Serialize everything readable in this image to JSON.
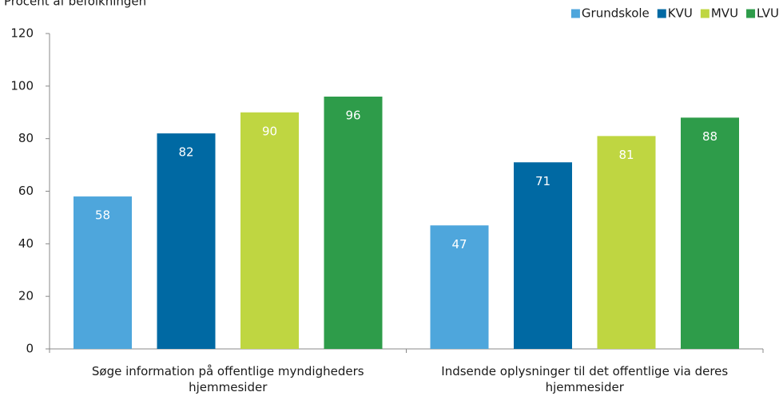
{
  "chart_data": {
    "type": "bar",
    "y_axis_label": "Procent af befolkningen",
    "categories": [
      "Søge information på offentlige myndigheders hjemmesider",
      "Indsende oplysninger til det offentlige via deres hjemmesider"
    ],
    "series": [
      {
        "name": "Grundskole",
        "color": "#4ea6dc",
        "values": [
          58,
          47
        ]
      },
      {
        "name": "KVU",
        "color": "#0069a3",
        "values": [
          82,
          71
        ]
      },
      {
        "name": "MVU",
        "color": "#bfd641",
        "values": [
          90,
          81
        ]
      },
      {
        "name": "LVU",
        "color": "#2e9c4a",
        "values": [
          96,
          88
        ]
      }
    ],
    "ylim": [
      0,
      120
    ],
    "yticks": [
      0,
      20,
      40,
      60,
      80,
      100,
      120
    ],
    "grid": false,
    "legend": "top-right"
  }
}
